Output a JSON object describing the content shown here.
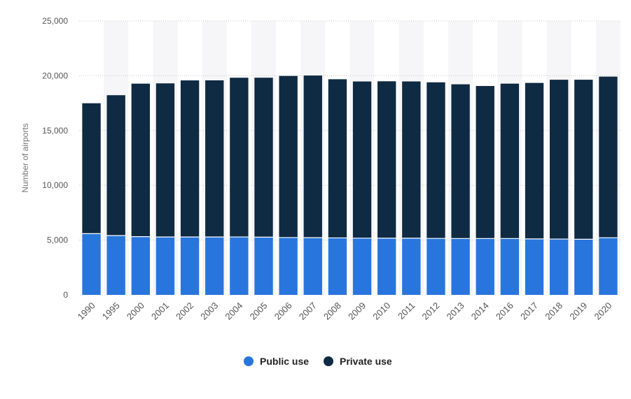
{
  "chart_data": {
    "type": "bar",
    "stacked": true,
    "categories": [
      "1990",
      "1995",
      "2000",
      "2001",
      "2002",
      "2003",
      "2004",
      "2005",
      "2006",
      "2007",
      "2008",
      "2009",
      "2010",
      "2011",
      "2012",
      "2013",
      "2014",
      "2016",
      "2017",
      "2018",
      "2019",
      "2020"
    ],
    "series": [
      {
        "name": "Public use",
        "color": "#2876dd",
        "values": [
          5589,
          5415,
          5317,
          5286,
          5286,
          5286,
          5288,
          5270,
          5233,
          5221,
          5202,
          5178,
          5175,
          5172,
          5155,
          5145,
          5145,
          5145,
          5112,
          5099,
          5080,
          5217
        ]
      },
      {
        "name": "Private use",
        "color": "#0f2a43",
        "values": [
          11901,
          12809,
          13963,
          14020,
          14290,
          14295,
          14532,
          14552,
          14750,
          14800,
          14480,
          14300,
          14320,
          14310,
          14245,
          14075,
          13920,
          14135,
          14235,
          14537,
          14557,
          14702
        ]
      }
    ],
    "ylabel": "Number of airports",
    "ylim": [
      0,
      25000
    ],
    "yticks": [
      "0",
      "5,000",
      "10,000",
      "15,000",
      "20,000",
      "25,000"
    ],
    "ytick_values": [
      0,
      5000,
      10000,
      15000,
      20000,
      25000
    ],
    "grid": true,
    "legend_position": "bottom-center"
  }
}
